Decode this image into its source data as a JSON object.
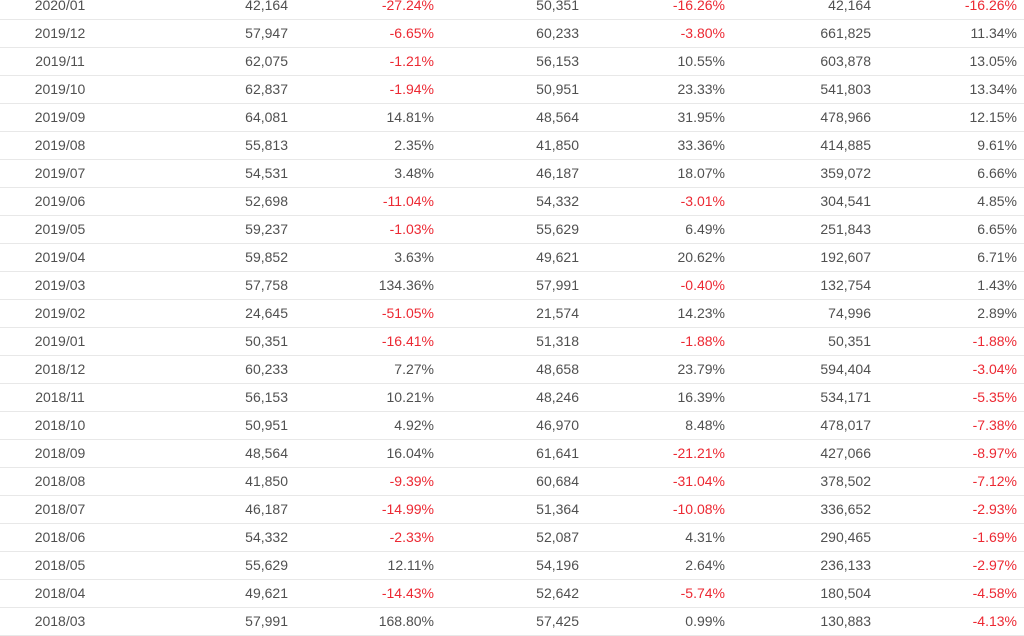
{
  "table": {
    "rows": [
      [
        "2020/01",
        "42,164",
        "-27.24%",
        "50,351",
        "-16.26%",
        "42,164",
        "-16.26%"
      ],
      [
        "2019/12",
        "57,947",
        "-6.65%",
        "60,233",
        "-3.80%",
        "661,825",
        "11.34%"
      ],
      [
        "2019/11",
        "62,075",
        "-1.21%",
        "56,153",
        "10.55%",
        "603,878",
        "13.05%"
      ],
      [
        "2019/10",
        "62,837",
        "-1.94%",
        "50,951",
        "23.33%",
        "541,803",
        "13.34%"
      ],
      [
        "2019/09",
        "64,081",
        "14.81%",
        "48,564",
        "31.95%",
        "478,966",
        "12.15%"
      ],
      [
        "2019/08",
        "55,813",
        "2.35%",
        "41,850",
        "33.36%",
        "414,885",
        "9.61%"
      ],
      [
        "2019/07",
        "54,531",
        "3.48%",
        "46,187",
        "18.07%",
        "359,072",
        "6.66%"
      ],
      [
        "2019/06",
        "52,698",
        "-11.04%",
        "54,332",
        "-3.01%",
        "304,541",
        "4.85%"
      ],
      [
        "2019/05",
        "59,237",
        "-1.03%",
        "55,629",
        "6.49%",
        "251,843",
        "6.65%"
      ],
      [
        "2019/04",
        "59,852",
        "3.63%",
        "49,621",
        "20.62%",
        "192,607",
        "6.71%"
      ],
      [
        "2019/03",
        "57,758",
        "134.36%",
        "57,991",
        "-0.40%",
        "132,754",
        "1.43%"
      ],
      [
        "2019/02",
        "24,645",
        "-51.05%",
        "21,574",
        "14.23%",
        "74,996",
        "2.89%"
      ],
      [
        "2019/01",
        "50,351",
        "-16.41%",
        "51,318",
        "-1.88%",
        "50,351",
        "-1.88%"
      ],
      [
        "2018/12",
        "60,233",
        "7.27%",
        "48,658",
        "23.79%",
        "594,404",
        "-3.04%"
      ],
      [
        "2018/11",
        "56,153",
        "10.21%",
        "48,246",
        "16.39%",
        "534,171",
        "-5.35%"
      ],
      [
        "2018/10",
        "50,951",
        "4.92%",
        "46,970",
        "8.48%",
        "478,017",
        "-7.38%"
      ],
      [
        "2018/09",
        "48,564",
        "16.04%",
        "61,641",
        "-21.21%",
        "427,066",
        "-8.97%"
      ],
      [
        "2018/08",
        "41,850",
        "-9.39%",
        "60,684",
        "-31.04%",
        "378,502",
        "-7.12%"
      ],
      [
        "2018/07",
        "46,187",
        "-14.99%",
        "51,364",
        "-10.08%",
        "336,652",
        "-2.93%"
      ],
      [
        "2018/06",
        "54,332",
        "-2.33%",
        "52,087",
        "4.31%",
        "290,465",
        "-1.69%"
      ],
      [
        "2018/05",
        "55,629",
        "12.11%",
        "54,196",
        "2.64%",
        "236,133",
        "-2.97%"
      ],
      [
        "2018/04",
        "49,621",
        "-14.43%",
        "52,642",
        "-5.74%",
        "180,504",
        "-4.58%"
      ],
      [
        "2018/03",
        "57,991",
        "168.80%",
        "57,425",
        "0.99%",
        "130,883",
        "-4.13%"
      ]
    ]
  },
  "colors": {
    "negative": "#ec2832",
    "text": "#505050",
    "divider": "#e8e8e8"
  }
}
